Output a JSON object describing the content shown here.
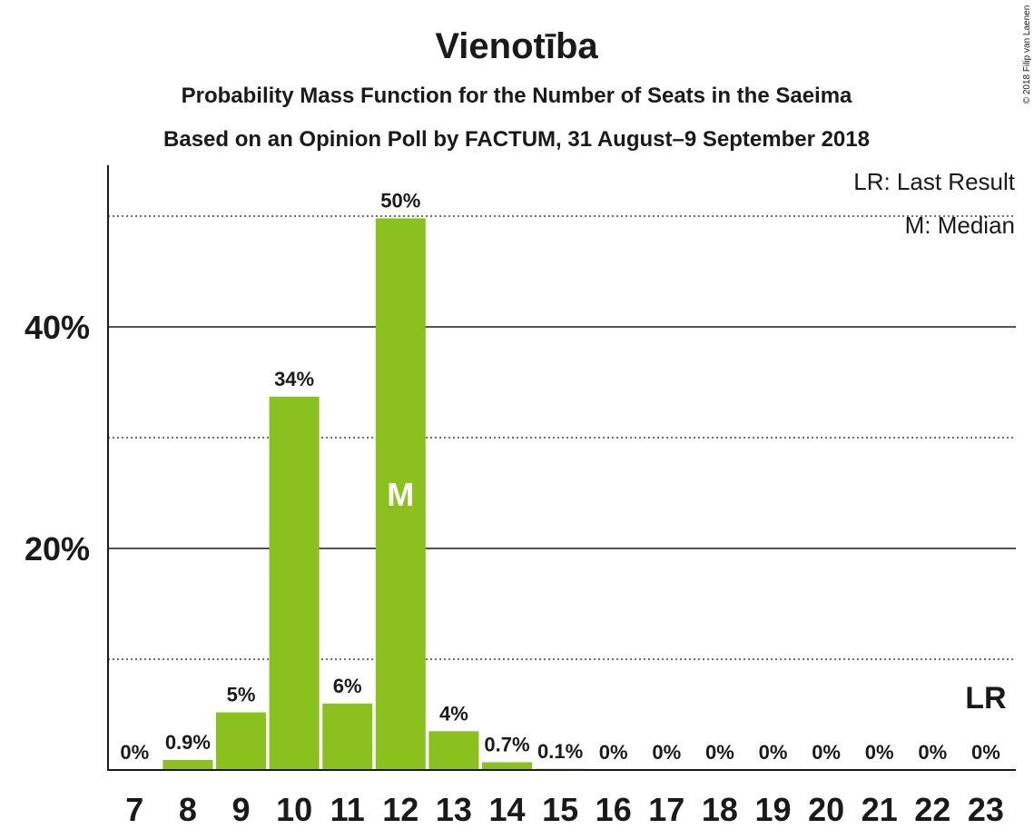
{
  "title": "Vienotība",
  "subtitle_1": "Probability Mass Function for the Number of Seats in the Saeima",
  "subtitle_2": "Based on an Opinion Poll by FACTUM, 31 August–9 September 2018",
  "copyright": "© 2018 Filip van Laenen",
  "legend": {
    "last_result": "LR: Last Result",
    "median": "M: Median"
  },
  "colors": {
    "bar": "#8AC11E",
    "text": "#1a1a1a",
    "grid": "#1a1a1a"
  },
  "chart_data": {
    "type": "bar",
    "categories": [
      "7",
      "8",
      "9",
      "10",
      "11",
      "12",
      "13",
      "14",
      "15",
      "16",
      "17",
      "18",
      "19",
      "20",
      "21",
      "22",
      "23"
    ],
    "values": [
      0,
      0.9,
      5.2,
      33.7,
      6.0,
      49.8,
      3.5,
      0.7,
      0.1,
      0,
      0,
      0,
      0,
      0,
      0,
      0,
      0
    ],
    "data_labels": [
      "0%",
      "0.9%",
      "5%",
      "34%",
      "6%",
      "50%",
      "4%",
      "0.7%",
      "0.1%",
      "0%",
      "0%",
      "0%",
      "0%",
      "0%",
      "0%",
      "0%",
      "0%"
    ],
    "yticks": [
      {
        "value": 20,
        "label": "20%"
      },
      {
        "value": 40,
        "label": "40%"
      }
    ],
    "minor_gridlines": [
      10,
      30,
      50
    ],
    "ylim": [
      0,
      54
    ],
    "median_seats": "12",
    "median_label": "M",
    "last_result_seats": "23",
    "last_result_label": "LR",
    "grid": true,
    "legend_position": "top-right"
  }
}
